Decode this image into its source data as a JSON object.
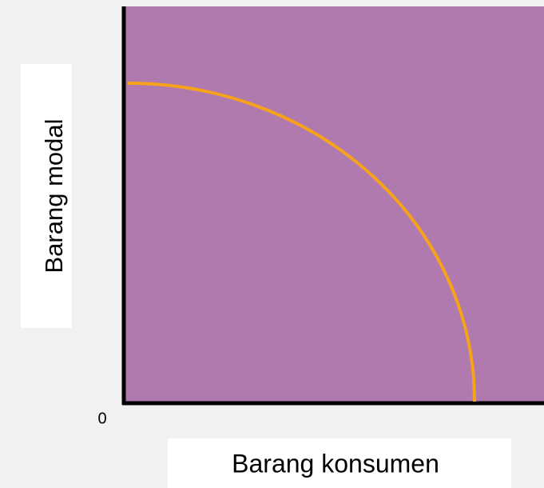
{
  "axes": {
    "y_label": "Barang modal",
    "origin": "0",
    "x_label": "Barang konsumen"
  }
}
